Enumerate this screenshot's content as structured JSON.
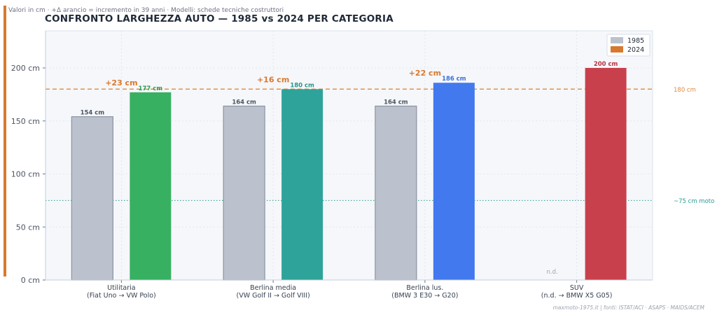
{
  "subtitle": "Valori in cm · +Δ arancio = incremento in 39 anni · Modelli: schede tecniche costruttori",
  "title": "CONFRONTO LARGHEZZA AUTO — 1985 vs 2024 PER CATEGORIA",
  "footer": "maxmoto-1975.it  |  fonti: ISTAT/ACI · ASAPS · MAIDS/ACEM",
  "chart_data": {
    "type": "bar",
    "categories": [
      "Utilitaria",
      "Berlina media",
      "Berlina lus.",
      "SUV"
    ],
    "category_sublabels": [
      "(Fiat Uno → VW Polo)",
      "(VW Golf II → Golf VIII)",
      "(BMW 3 E30 → G20)",
      "(n.d. → BMW X5 G05)"
    ],
    "series": [
      {
        "name": "1985",
        "values": [
          154,
          164,
          164,
          null
        ],
        "labels": [
          "154 cm",
          "164 cm",
          "164 cm",
          "n.d."
        ],
        "colors": [
          "#bcc2cd",
          "#bcc2cd",
          "#bcc2cd",
          "#bcc2cd"
        ],
        "label_colors": [
          "#4b5563",
          "#4b5563",
          "#4b5563",
          "#9ca3af"
        ]
      },
      {
        "name": "2024",
        "values": [
          177,
          180,
          186,
          200
        ],
        "labels": [
          "177 cm",
          "180 cm",
          "186 cm",
          "200 cm"
        ],
        "colors": [
          "#38b062",
          "#2ea39a",
          "#4379ee",
          "#c9404d"
        ],
        "label_colors": [
          "#2e9c57",
          "#27958d",
          "#3b6fd8",
          "#b7323f"
        ]
      }
    ],
    "deltas": [
      "+23 cm",
      "+16 cm",
      "+22 cm",
      null
    ],
    "delta_color": "#d9782f",
    "legend": [
      {
        "label": "1985",
        "color": "#bcc2cd"
      },
      {
        "label": "2024",
        "color": "#d9782f"
      }
    ],
    "legend_position": "top-right",
    "reference_lines": [
      {
        "value": 180,
        "label": "180 cm",
        "color": "#e08a3c",
        "style": "dashed"
      },
      {
        "value": 75,
        "label": "~75 cm moto",
        "color": "#2a9d8f",
        "style": "dotted"
      }
    ],
    "yticks": [
      0,
      50,
      100,
      150,
      200
    ],
    "ytick_labels": [
      "0 cm",
      "50 cm",
      "100 cm",
      "150 cm",
      "200 cm"
    ],
    "ylim": [
      0,
      235
    ],
    "grid": true
  }
}
